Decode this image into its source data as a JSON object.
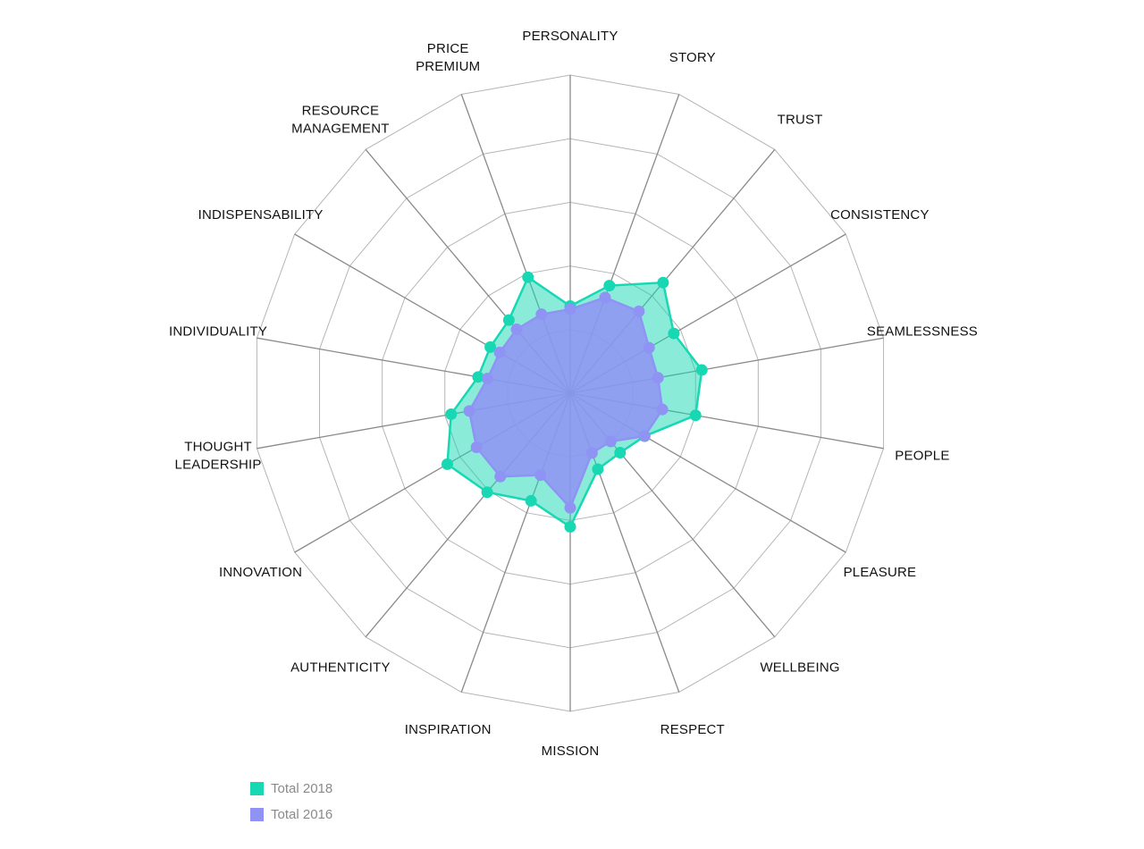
{
  "chart_data": {
    "type": "radar",
    "axes": [
      [
        "PERSONALITY"
      ],
      [
        "STORY"
      ],
      [
        "TRUST"
      ],
      [
        "CONSISTENCY"
      ],
      [
        "SEAMLESSNESS"
      ],
      [
        "PEOPLE"
      ],
      [
        "PLEASURE"
      ],
      [
        "WELLBEING"
      ],
      [
        "RESPECT"
      ],
      [
        "MISSION"
      ],
      [
        "INSPIRATION"
      ],
      [
        "AUTHENTICITY"
      ],
      [
        "INNOVATION"
      ],
      [
        "THOUGHT",
        "LEADERSHIP"
      ],
      [
        "INDIVIDUALITY"
      ],
      [
        "INDISPENSABILITY"
      ],
      [
        "RESOURCE",
        "MANAGEMENT"
      ],
      [
        "PRICE",
        "PREMIUM"
      ]
    ],
    "series": [
      {
        "name": "Total 2018",
        "color": "#18d8b4",
        "fill": "rgba(24,216,180,0.50)",
        "values": [
          1.37,
          1.8,
          2.27,
          1.88,
          2.1,
          2.0,
          1.35,
          1.22,
          1.27,
          2.1,
          1.8,
          2.03,
          2.23,
          1.9,
          1.47,
          1.45,
          1.5,
          1.94
        ]
      },
      {
        "name": "Total 2016",
        "color": "#8f93f4",
        "fill": "rgba(143,147,244,0.85)",
        "values": [
          1.32,
          1.6,
          1.68,
          1.43,
          1.4,
          1.47,
          1.35,
          0.99,
          1.0,
          1.8,
          1.37,
          1.71,
          1.7,
          1.61,
          1.32,
          1.28,
          1.31,
          1.32
        ]
      }
    ],
    "rlim": [
      0,
      5
    ],
    "rings": 5,
    "grid": true,
    "legend": "bottom-left"
  }
}
